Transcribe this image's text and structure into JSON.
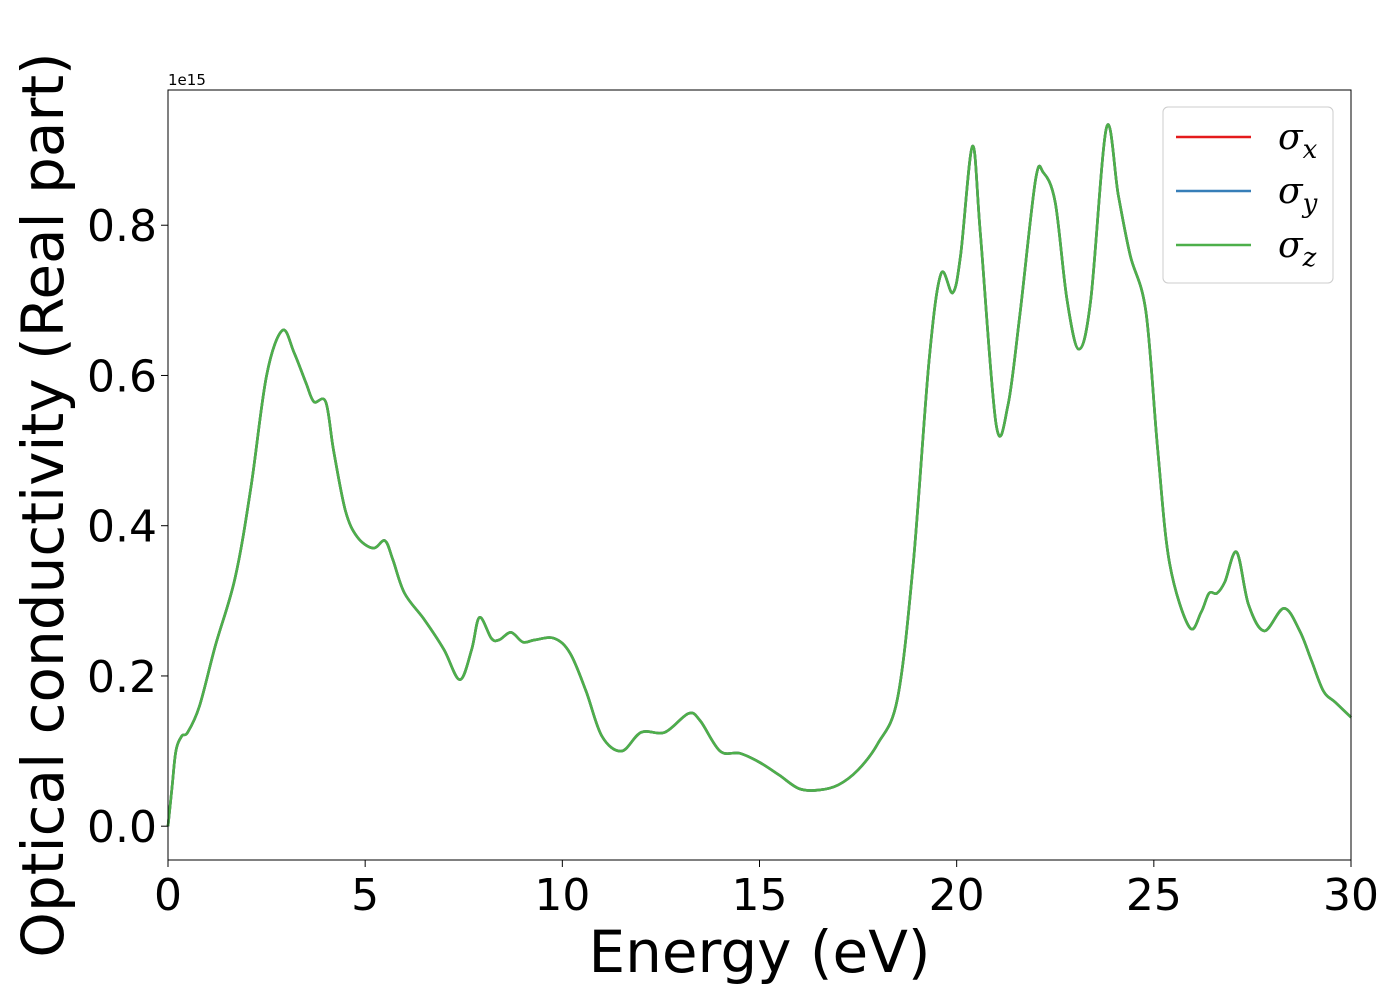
{
  "chart_data": {
    "type": "line",
    "xlabel": "Energy (eV)",
    "ylabel": "Optical conductivity (Real part)",
    "y_offset_label": "1e15",
    "xlim": [
      0,
      30
    ],
    "ylim": [
      -0.045,
      0.98
    ],
    "x_ticks": [
      0,
      5,
      10,
      15,
      20,
      25,
      30
    ],
    "x_tick_labels": [
      "0",
      "5",
      "10",
      "15",
      "20",
      "25",
      "30"
    ],
    "y_ticks": [
      0.0,
      0.2,
      0.4,
      0.6,
      0.8
    ],
    "y_tick_labels": [
      "0.0",
      "0.2",
      "0.4",
      "0.6",
      "0.8"
    ],
    "grid": false,
    "legend_position": "top-right",
    "series": [
      {
        "name": "σ",
        "subscript": "x",
        "color": "#e41a1c"
      },
      {
        "name": "σ",
        "subscript": "y",
        "color": "#377eb8"
      },
      {
        "name": "σ",
        "subscript": "z",
        "color": "#4daf4a"
      }
    ],
    "x": [
      0,
      0.1,
      0.2,
      0.35,
      0.5,
      0.8,
      1.2,
      1.7,
      2.1,
      2.5,
      2.9,
      3.2,
      3.5,
      3.7,
      4.0,
      4.2,
      4.5,
      4.8,
      5.2,
      5.5,
      5.7,
      6.0,
      6.5,
      7.0,
      7.4,
      7.7,
      7.9,
      8.2,
      8.4,
      8.7,
      9.0,
      9.3,
      9.8,
      10.2,
      10.6,
      11.0,
      11.5,
      12.0,
      12.6,
      13.2,
      13.5,
      14.0,
      14.5,
      15.0,
      15.5,
      16.0,
      16.5,
      17.0,
      17.5,
      18.0,
      18.5,
      18.9,
      19.3,
      19.6,
      19.9,
      20.1,
      20.4,
      20.6,
      21.0,
      21.3,
      21.6,
      22.0,
      22.2,
      22.5,
      22.8,
      23.1,
      23.4,
      23.8,
      24.1,
      24.4,
      24.8,
      25.1,
      25.4,
      25.9,
      26.2,
      26.4,
      26.6,
      26.8,
      27.1,
      27.4,
      27.8,
      28.3,
      28.7,
      29.0,
      29.3,
      29.6,
      30.0
    ],
    "y": [
      0.0,
      0.05,
      0.1,
      0.12,
      0.125,
      0.16,
      0.24,
      0.33,
      0.45,
      0.6,
      0.66,
      0.63,
      0.59,
      0.565,
      0.565,
      0.5,
      0.42,
      0.385,
      0.37,
      0.38,
      0.355,
      0.31,
      0.275,
      0.235,
      0.195,
      0.235,
      0.278,
      0.25,
      0.248,
      0.258,
      0.245,
      0.248,
      0.25,
      0.23,
      0.18,
      0.12,
      0.1,
      0.125,
      0.125,
      0.15,
      0.14,
      0.1,
      0.097,
      0.085,
      0.068,
      0.05,
      0.048,
      0.055,
      0.075,
      0.11,
      0.17,
      0.35,
      0.62,
      0.735,
      0.71,
      0.76,
      0.905,
      0.79,
      0.535,
      0.56,
      0.68,
      0.86,
      0.87,
      0.83,
      0.7,
      0.635,
      0.7,
      0.93,
      0.84,
      0.76,
      0.685,
      0.5,
      0.35,
      0.265,
      0.285,
      0.31,
      0.31,
      0.325,
      0.365,
      0.295,
      0.26,
      0.29,
      0.26,
      0.22,
      0.18,
      0.165,
      0.145
    ]
  }
}
